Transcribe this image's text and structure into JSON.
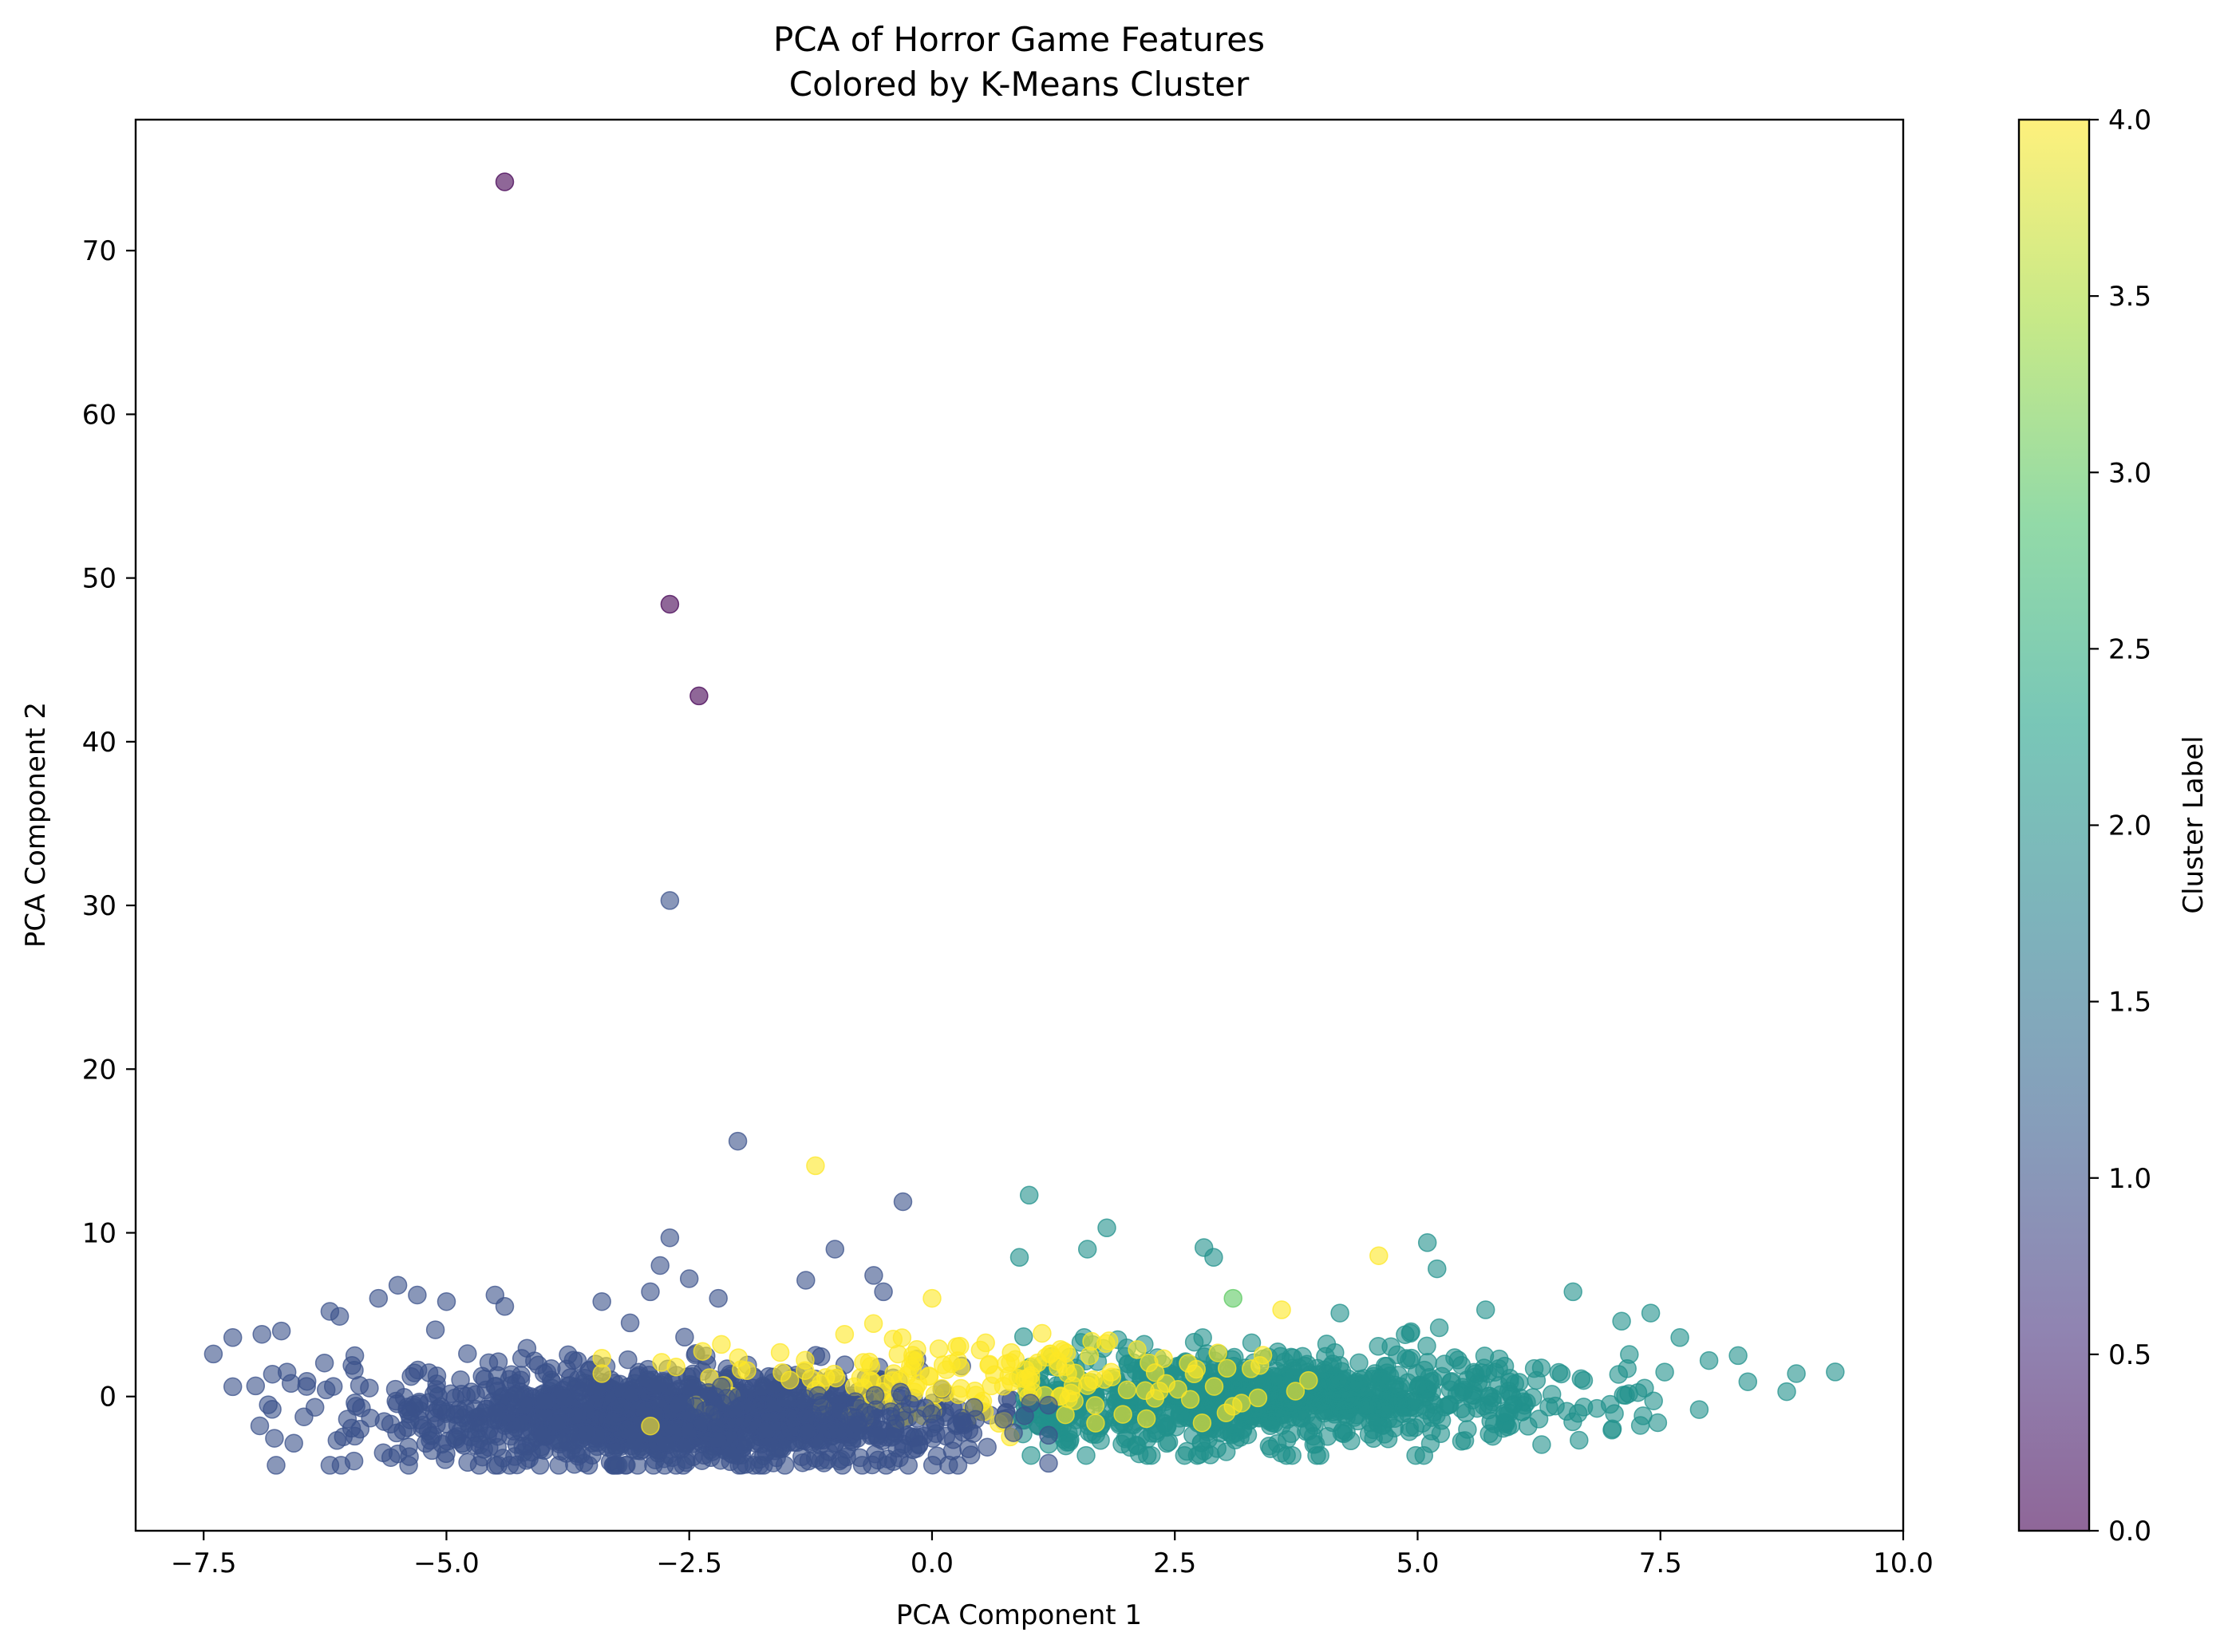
{
  "chart_data": {
    "type": "scatter",
    "title": "PCA of Horror Game Features",
    "subtitle": "Colored by K-Means Cluster",
    "xlabel": "PCA Component 1",
    "ylabel": "PCA Component 2",
    "xlim": [
      -8.2,
      10.0
    ],
    "ylim": [
      -8.2,
      78.0
    ],
    "xticks": [
      "−7.5",
      "−5.0",
      "−2.5",
      "0.0",
      "2.5",
      "5.0",
      "7.5",
      "10.0"
    ],
    "xtick_values": [
      -7.5,
      -5.0,
      -2.5,
      0.0,
      2.5,
      5.0,
      7.5,
      10.0
    ],
    "yticks": [
      "0",
      "10",
      "20",
      "30",
      "40",
      "50",
      "60",
      "70"
    ],
    "ytick_values": [
      0,
      10,
      20,
      30,
      40,
      50,
      60,
      70
    ],
    "grid": false,
    "colormap": "viridis",
    "marker_alpha": 0.6,
    "colorbar": {
      "label": "Cluster Label",
      "range": [
        0.0,
        4.0
      ],
      "ticks": [
        "0.0",
        "0.5",
        "1.0",
        "1.5",
        "2.0",
        "2.5",
        "3.0",
        "3.5",
        "4.0"
      ],
      "tick_values": [
        0.0,
        0.5,
        1.0,
        1.5,
        2.0,
        2.5,
        3.0,
        3.5,
        4.0
      ],
      "stops": [
        "#440154",
        "#46327e",
        "#365c8d",
        "#277f8e",
        "#1fa187",
        "#4ac16d",
        "#a0da39",
        "#fde725"
      ]
    },
    "cluster_colors": {
      "0": "#440154",
      "1": "#3b528b",
      "2": "#21918c",
      "3": "#5ec962",
      "4": "#fde725"
    },
    "points": [
      {
        "x": -4.4,
        "y": 74.2,
        "cluster": 0
      },
      {
        "x": -2.7,
        "y": 48.4,
        "cluster": 0
      },
      {
        "x": -2.4,
        "y": 42.8,
        "cluster": 0
      },
      {
        "x": -2.7,
        "y": 30.3,
        "cluster": 1
      },
      {
        "x": -2.0,
        "y": 15.6,
        "cluster": 1
      },
      {
        "x": -2.7,
        "y": 9.7,
        "cluster": 1
      },
      {
        "x": -0.3,
        "y": 11.9,
        "cluster": 1
      },
      {
        "x": -1.0,
        "y": 9.0,
        "cluster": 1
      },
      {
        "x": -7.4,
        "y": 2.6,
        "cluster": 1
      },
      {
        "x": -7.2,
        "y": 3.6,
        "cluster": 1
      },
      {
        "x": -7.2,
        "y": 0.6,
        "cluster": 1
      },
      {
        "x": -6.9,
        "y": 3.8,
        "cluster": 1
      },
      {
        "x": -6.7,
        "y": 4.0,
        "cluster": 1
      },
      {
        "x": -6.6,
        "y": 0.8,
        "cluster": 1
      },
      {
        "x": -6.2,
        "y": 5.2,
        "cluster": 1
      },
      {
        "x": -6.1,
        "y": 4.9,
        "cluster": 1
      },
      {
        "x": -5.7,
        "y": 6.0,
        "cluster": 1
      },
      {
        "x": -5.5,
        "y": 6.8,
        "cluster": 1
      },
      {
        "x": -5.3,
        "y": 6.2,
        "cluster": 1
      },
      {
        "x": -5.0,
        "y": 5.8,
        "cluster": 1
      },
      {
        "x": -4.5,
        "y": 6.2,
        "cluster": 1
      },
      {
        "x": -4.4,
        "y": 5.5,
        "cluster": 1
      },
      {
        "x": -3.4,
        "y": 5.8,
        "cluster": 1
      },
      {
        "x": -2.9,
        "y": 6.4,
        "cluster": 1
      },
      {
        "x": -2.8,
        "y": 8.0,
        "cluster": 1
      },
      {
        "x": -2.5,
        "y": 7.2,
        "cluster": 1
      },
      {
        "x": -2.2,
        "y": 6.0,
        "cluster": 1
      },
      {
        "x": -1.3,
        "y": 7.1,
        "cluster": 1
      },
      {
        "x": -0.6,
        "y": 7.4,
        "cluster": 1
      },
      {
        "x": -0.5,
        "y": 6.4,
        "cluster": 1
      },
      {
        "x": -1.2,
        "y": 14.1,
        "cluster": 4
      },
      {
        "x": -2.9,
        "y": -1.8,
        "cluster": 4
      },
      {
        "x": -3.4,
        "y": 1.4,
        "cluster": 4
      },
      {
        "x": -0.9,
        "y": 3.8,
        "cluster": 4
      },
      {
        "x": 0.0,
        "y": 6.0,
        "cluster": 4
      },
      {
        "x": 0.1,
        "y": 0.5,
        "cluster": 4
      },
      {
        "x": 3.1,
        "y": -0.6,
        "cluster": 4
      },
      {
        "x": 3.6,
        "y": 5.3,
        "cluster": 4
      },
      {
        "x": 4.6,
        "y": 8.6,
        "cluster": 4
      },
      {
        "x": 3.1,
        "y": 6.0,
        "cluster": 3
      },
      {
        "x": 1.0,
        "y": 12.3,
        "cluster": 2
      },
      {
        "x": 1.8,
        "y": 10.3,
        "cluster": 2
      },
      {
        "x": 1.6,
        "y": 9.0,
        "cluster": 2
      },
      {
        "x": 0.9,
        "y": 8.5,
        "cluster": 2
      },
      {
        "x": 2.8,
        "y": 9.1,
        "cluster": 2
      },
      {
        "x": 2.9,
        "y": 8.5,
        "cluster": 2
      },
      {
        "x": 5.1,
        "y": 9.4,
        "cluster": 2
      },
      {
        "x": 5.2,
        "y": 7.8,
        "cluster": 2
      },
      {
        "x": 6.6,
        "y": 6.4,
        "cluster": 2
      },
      {
        "x": 7.1,
        "y": 4.6,
        "cluster": 2
      },
      {
        "x": 7.4,
        "y": 5.1,
        "cluster": 2
      },
      {
        "x": 7.7,
        "y": 3.6,
        "cluster": 2
      },
      {
        "x": 8.0,
        "y": 2.2,
        "cluster": 2
      },
      {
        "x": 8.3,
        "y": 2.5,
        "cluster": 2
      },
      {
        "x": 8.4,
        "y": 0.9,
        "cluster": 2
      },
      {
        "x": 8.8,
        "y": 0.3,
        "cluster": 2
      },
      {
        "x": 8.9,
        "y": 1.4,
        "cluster": 2
      },
      {
        "x": 9.3,
        "y": 1.5,
        "cluster": 2
      },
      {
        "x": 7.9,
        "y": -0.8,
        "cluster": 2
      },
      {
        "x": 4.2,
        "y": 5.1,
        "cluster": 2
      },
      {
        "x": 5.7,
        "y": 5.3,
        "cluster": 2
      }
    ]
  }
}
